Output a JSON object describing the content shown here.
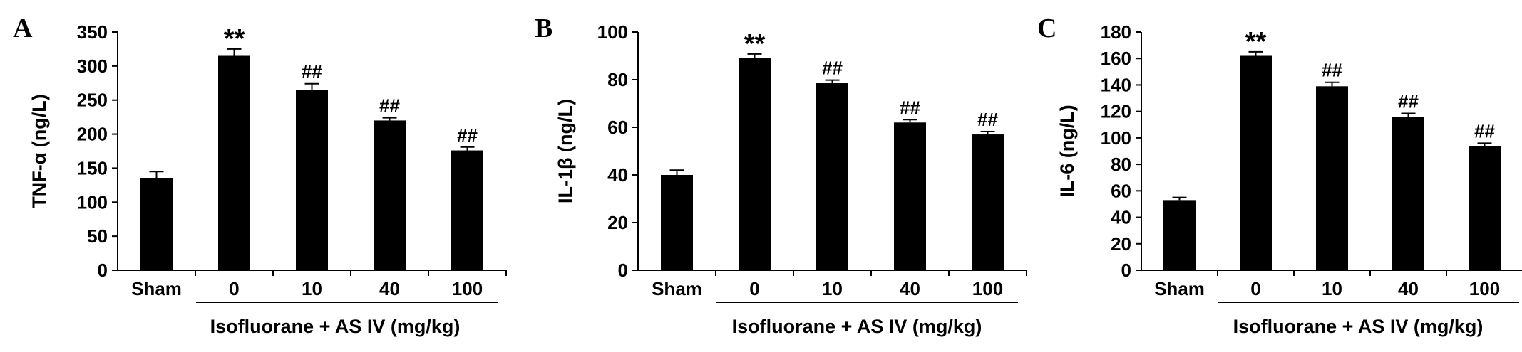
{
  "chart_data": [
    {
      "type": "bar",
      "panel_label": "A",
      "ylabel": "TNF-α (ng/L)",
      "ylim": [
        0,
        350
      ],
      "yticks": [
        0,
        50,
        100,
        150,
        200,
        250,
        300,
        350
      ],
      "categories": [
        "Sham",
        "0",
        "10",
        "40",
        "100"
      ],
      "values": [
        135,
        315,
        265,
        220,
        176
      ],
      "errors": [
        10,
        10,
        9,
        4,
        5
      ],
      "annotations": [
        "",
        "**",
        "##",
        "##",
        "##"
      ],
      "group_label": "Isofluorane + AS IV (mg/kg)",
      "bar_color": "#000000"
    },
    {
      "type": "bar",
      "panel_label": "B",
      "ylabel": "IL-1β (ng/L)",
      "ylim": [
        0,
        100
      ],
      "yticks": [
        0,
        20,
        40,
        60,
        80,
        100
      ],
      "categories": [
        "Sham",
        "0",
        "10",
        "40",
        "100"
      ],
      "values": [
        40,
        89,
        78.5,
        62,
        57
      ],
      "errors": [
        2,
        1.8,
        1.3,
        1.2,
        1.2
      ],
      "annotations": [
        "",
        "**",
        "##",
        "##",
        "##"
      ],
      "group_label": "Isofluorane + AS IV (mg/kg)",
      "bar_color": "#000000"
    },
    {
      "type": "bar",
      "panel_label": "C",
      "ylabel": "IL-6 (ng/L)",
      "ylim": [
        0,
        180
      ],
      "yticks": [
        0,
        20,
        40,
        60,
        80,
        100,
        120,
        140,
        160,
        180
      ],
      "categories": [
        "Sham",
        "0",
        "10",
        "40",
        "100"
      ],
      "values": [
        53,
        162,
        139,
        116,
        94
      ],
      "errors": [
        2,
        3,
        3,
        2.5,
        2
      ],
      "annotations": [
        "",
        "**",
        "##",
        "##",
        "##"
      ],
      "group_label": "Isofluorane + AS IV (mg/kg)",
      "bar_color": "#000000"
    }
  ]
}
